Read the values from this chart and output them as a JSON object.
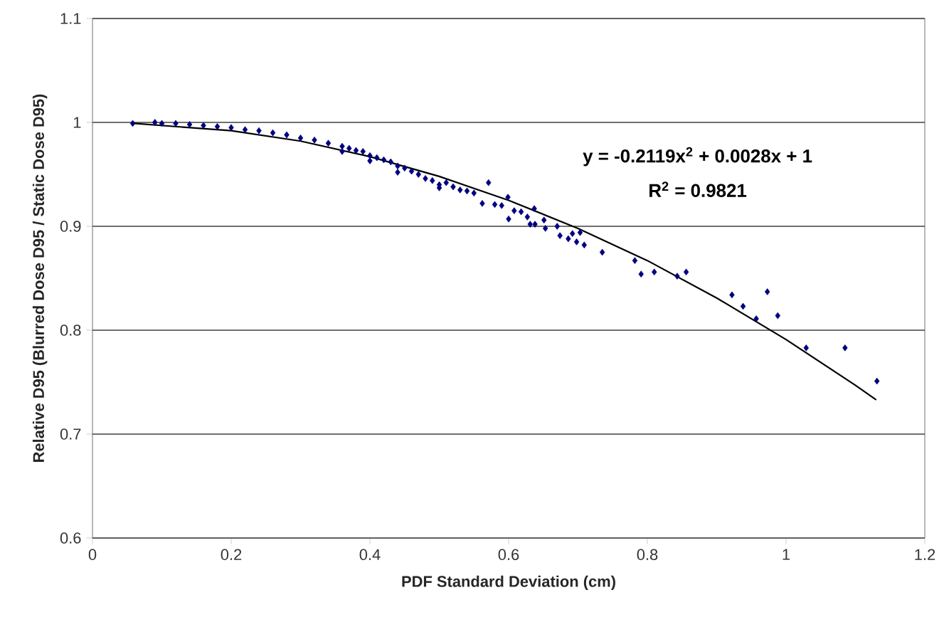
{
  "chart_data": {
    "type": "scatter",
    "xlabel": "PDF Standard Deviation (cm)",
    "ylabel": "Relative D95 (Blurred Dose D95 / Static Dose D95)",
    "annotations": [
      "y = -0.2119x$^{2}$ + 0.0028x + 1",
      "R$^{2}$ = 0.9821"
    ],
    "series": [
      {
        "color": "#000080",
        "marker": "diamond",
        "x": [
          0.058,
          0.09,
          0.1,
          0.12,
          0.14,
          0.16,
          0.18,
          0.2,
          0.22,
          0.24,
          0.26,
          0.28,
          0.3,
          0.32,
          0.34,
          0.36,
          0.36,
          0.37,
          0.38,
          0.39,
          0.4,
          0.4,
          0.41,
          0.42,
          0.43,
          0.44,
          0.44,
          0.45,
          0.46,
          0.47,
          0.48,
          0.49,
          0.5,
          0.5,
          0.51,
          0.52,
          0.53,
          0.54,
          0.55,
          0.562,
          0.571,
          0.58,
          0.59,
          0.599,
          0.6,
          0.608,
          0.618,
          0.627,
          0.631,
          0.637,
          0.638,
          0.651,
          0.653,
          0.67,
          0.674,
          0.686,
          0.692,
          0.698,
          0.703,
          0.709,
          0.735,
          0.782,
          0.791,
          0.81,
          0.843,
          0.856,
          0.922,
          0.938,
          0.957,
          0.973,
          0.988,
          1.029,
          1.085,
          1.131
        ],
        "values": [
          0.999,
          1.0,
          0.999,
          0.999,
          0.998,
          0.997,
          0.996,
          0.995,
          0.993,
          0.992,
          0.99,
          0.988,
          0.985,
          0.983,
          0.98,
          0.977,
          0.972,
          0.975,
          0.973,
          0.972,
          0.968,
          0.963,
          0.966,
          0.964,
          0.962,
          0.958,
          0.952,
          0.956,
          0.953,
          0.95,
          0.946,
          0.944,
          0.94,
          0.937,
          0.942,
          0.938,
          0.935,
          0.934,
          0.932,
          0.922,
          0.942,
          0.921,
          0.92,
          0.928,
          0.907,
          0.915,
          0.914,
          0.909,
          0.902,
          0.917,
          0.902,
          0.906,
          0.898,
          0.9,
          0.891,
          0.888,
          0.893,
          0.885,
          0.894,
          0.882,
          0.875,
          0.867,
          0.854,
          0.856,
          0.852,
          0.856,
          0.834,
          0.823,
          0.811,
          0.837,
          0.814,
          0.783,
          0.783,
          0.751
        ]
      },
      {
        "type": "line",
        "color": "#000000",
        "marker": "none",
        "line_style": "solid",
        "x": [
          0.06,
          0.2,
          0.3,
          0.4,
          0.5,
          0.6,
          0.7,
          0.8,
          0.9,
          1.0,
          1.1,
          1.13
        ],
        "values": [
          0.999,
          0.992,
          0.982,
          0.967,
          0.948,
          0.925,
          0.898,
          0.867,
          0.831,
          0.791,
          0.747,
          0.733
        ]
      }
    ],
    "xlim": [
      0,
      1.2
    ],
    "xticks": [
      0,
      0.2,
      0.4,
      0.6,
      0.8,
      1,
      1.2
    ],
    "ylim": [
      0.6,
      1.1
    ],
    "yticks": [
      0.6,
      0.7,
      0.8,
      0.9,
      1,
      1.1
    ],
    "grid": "y"
  }
}
